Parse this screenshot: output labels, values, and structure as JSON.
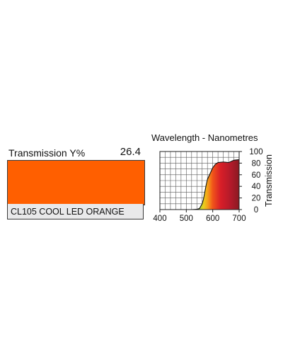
{
  "product": {
    "transmission_label": "Transmission Y%",
    "transmission_value": "26.4",
    "name": "CL105 COOL LED ORANGE",
    "swatch_color": "#ff5f00"
  },
  "chart_data": {
    "type": "area",
    "title": "Wavelength - Nanometres",
    "xlabel": "",
    "ylabel": "Transmission",
    "xlim": [
      400,
      700
    ],
    "ylim": [
      0,
      100
    ],
    "x_ticks": [
      "400",
      "500",
      "600",
      "700"
    ],
    "y_ticks": [
      "0",
      "20",
      "40",
      "60",
      "80",
      "100"
    ],
    "grid": true,
    "series": [
      {
        "x": [
          400,
          450,
          500,
          520,
          540,
          550,
          560,
          565,
          570,
          575,
          580,
          590,
          600,
          610,
          620,
          640,
          660,
          680,
          700
        ],
        "values": [
          0,
          0,
          0,
          0,
          0.5,
          2,
          10,
          18,
          30,
          42,
          52,
          62,
          72,
          78,
          81,
          82,
          81,
          85,
          86
        ]
      }
    ],
    "fill_gradient": [
      {
        "at": 550,
        "color": "#a8d43a"
      },
      {
        "at": 565,
        "color": "#e8d01c"
      },
      {
        "at": 580,
        "color": "#f5a31a"
      },
      {
        "at": 600,
        "color": "#f0541a"
      },
      {
        "at": 630,
        "color": "#d81e28"
      },
      {
        "at": 670,
        "color": "#b01a2a"
      },
      {
        "at": 700,
        "color": "#8a1a22"
      }
    ]
  }
}
